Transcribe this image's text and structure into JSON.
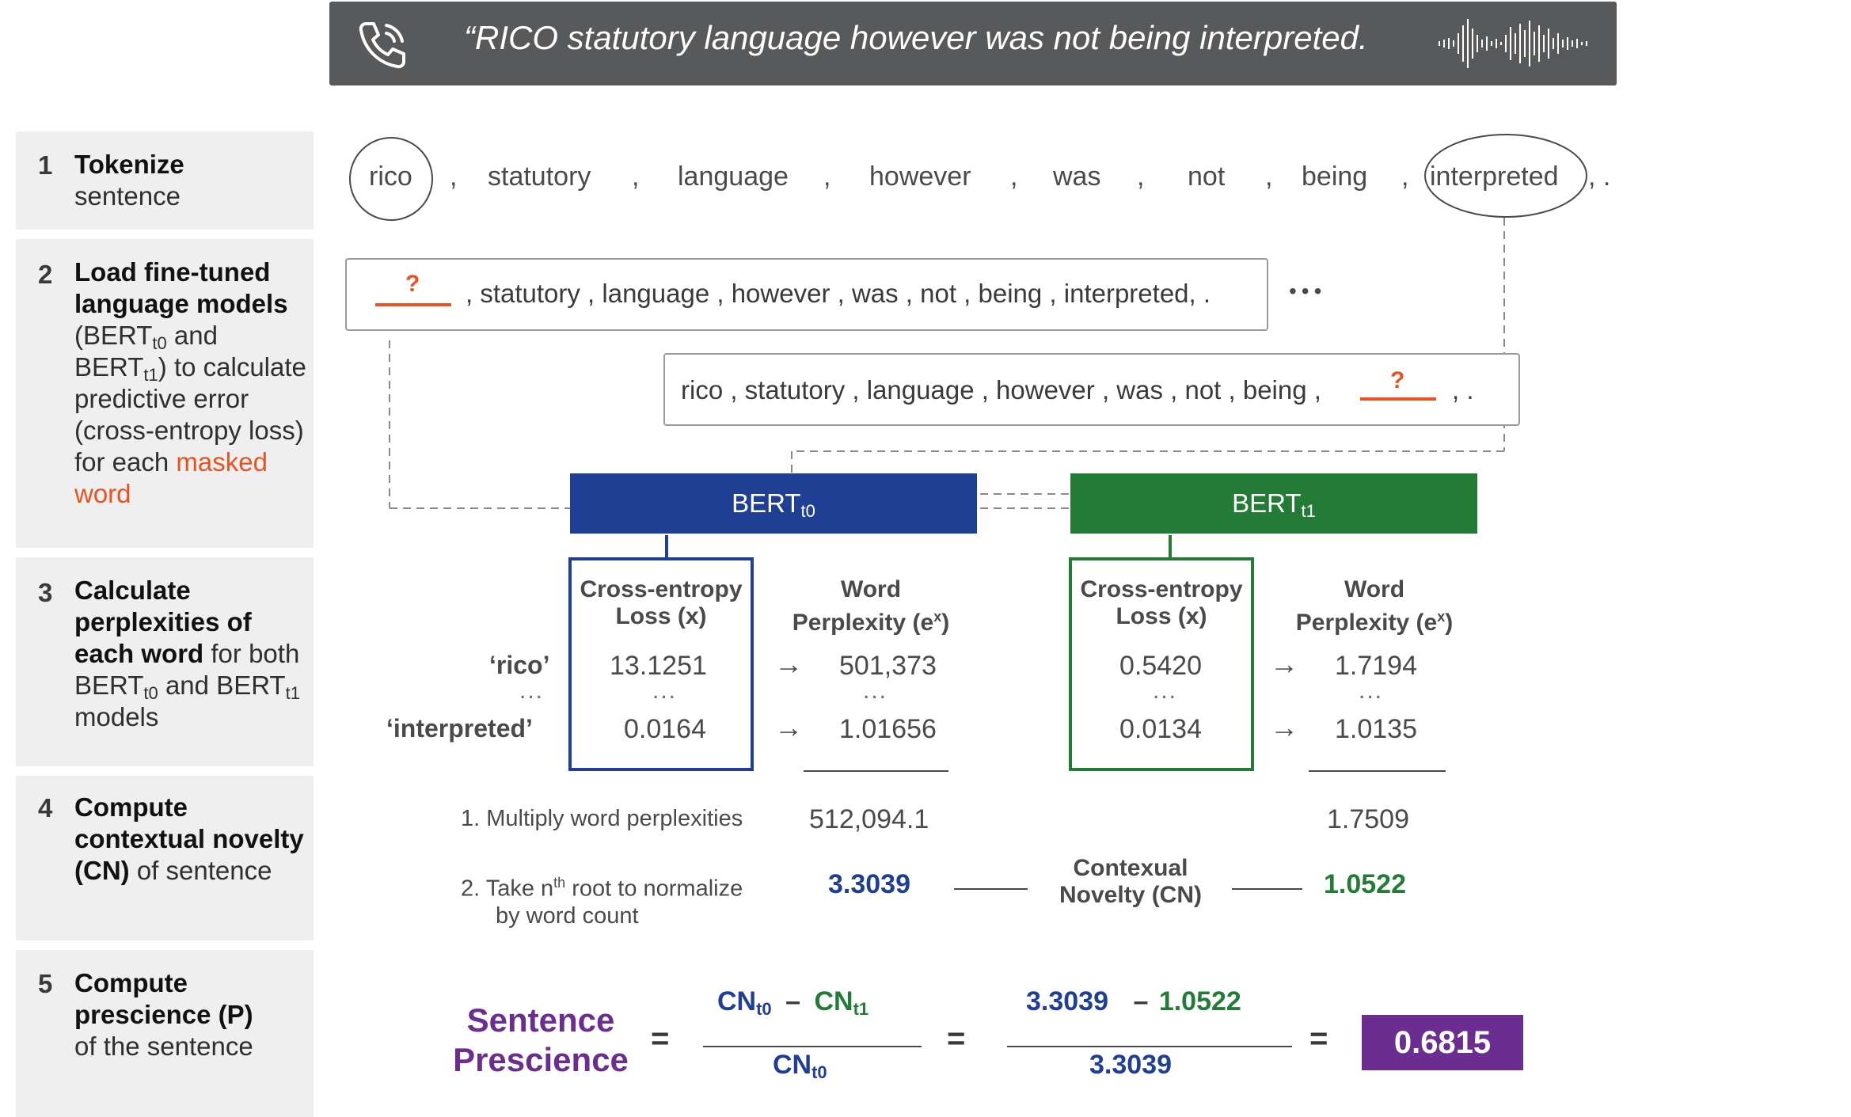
{
  "banner": {
    "quote": "“RICO statutory language however was not being interpreted.",
    "left_icon": "phone-icon",
    "right_icon": "soundwave-icon"
  },
  "steps": [
    {
      "num": "1",
      "title": "Tokenize",
      "rest": "sentence"
    },
    {
      "num": "2",
      "title": "Load fine-tuned language models",
      "bert_a": "(BERT",
      "sub_a": "t0",
      "and": " and",
      "bert_b": "BERT",
      "sub_b": "t1",
      "rest": ") to calculate predictive error (cross-entropy loss) for each",
      "highlight": "masked word"
    },
    {
      "num": "3",
      "title": "Calculate perplexities of each word",
      "for": " for both BERT",
      "sub_a": "t0",
      "and": " and BERT",
      "sub_b": "t1",
      "rest": " models"
    },
    {
      "num": "4",
      "title": "Compute contextual novelty (CN)",
      "rest": " of sentence"
    },
    {
      "num": "5",
      "title": "Compute prescience (P)",
      "rest": "of the sentence"
    }
  ],
  "tokens": [
    "rico",
    ",",
    "statutory",
    ",",
    "language",
    ",",
    "however",
    ",",
    "was",
    ",",
    "not",
    ",",
    "being",
    ",",
    "interpreted",
    ", ."
  ],
  "masked_sentences": {
    "first_mask": "?",
    "first_rest": ", statutory , language , however , was , not , being , interpreted, .",
    "ellipsis": "•••",
    "second_lead": "rico , statutory , language , however , was , not , being ,",
    "second_mask": "?",
    "second_tail": ", ."
  },
  "models": {
    "t0": {
      "name": "BERT",
      "sub": "t0",
      "color": "#1f3f95"
    },
    "t1": {
      "name": "BERT",
      "sub": "t1",
      "color": "#237c36"
    }
  },
  "table": {
    "loss_header_1": "Cross-entropy",
    "loss_header_2": "Loss (x)",
    "perp_header_1": "Word",
    "perp_header_2": "Perplexity (e",
    "perp_sup": "x",
    "perp_close": ")",
    "word_1": "‘rico’",
    "word_2": "‘interpreted’",
    "dots": "...",
    "arrow": "→",
    "t0": {
      "loss_1": "13.1251",
      "perp_1": "501,373",
      "loss_2": "0.0164",
      "perp_2": "1.01656"
    },
    "t1": {
      "loss_1": "0.5420",
      "perp_1": "1.7194",
      "loss_2": "0.0134",
      "perp_2": "1.0135"
    }
  },
  "cn": {
    "step1_label": "1.  Multiply word perplexities",
    "step2_label_1": "2.  Take n",
    "step2_sup": "th",
    "step2_label_2": " root to normalize",
    "step2_label_3": "by word count",
    "product_t0": "512,094.1",
    "product_t1": "1.7509",
    "cn_t0": "3.3039",
    "cn_t1": "1.0522",
    "cn_label_1": "Contexual",
    "cn_label_2": "Novelty (CN)"
  },
  "prescience": {
    "label_1": "Sentence",
    "label_2": "Prescience",
    "eq": "=",
    "cn": "CN",
    "t0": "t0",
    "t1": "t1",
    "minus": "–",
    "num_a": "3.3039",
    "num_b": "1.0522",
    "den": "3.3039",
    "result": "0.6815"
  },
  "colors": {
    "blue": "#1f3f95",
    "green": "#237c36",
    "orange": "#e8531f",
    "purple": "#6b2d8f",
    "banner": "#58595b",
    "panel": "#efeff0"
  }
}
